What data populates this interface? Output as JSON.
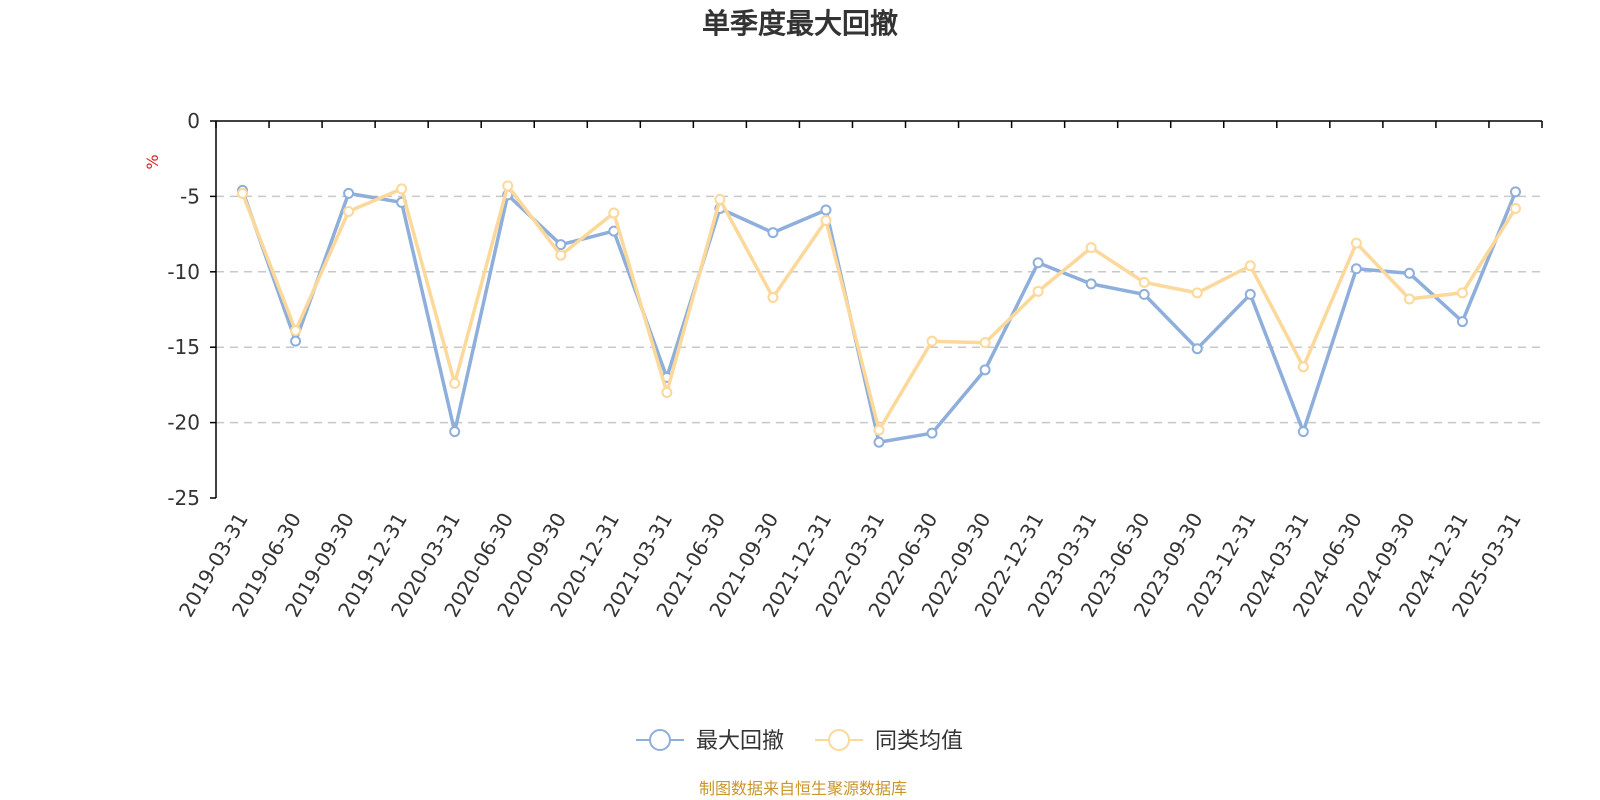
{
  "chart_data": {
    "type": "line",
    "title": "单季度最大回撤",
    "ylabel": "%",
    "ylim": [
      -25,
      0
    ],
    "yticks": [
      0,
      -5,
      -10,
      -15,
      -20,
      -25
    ],
    "grid": true,
    "legend_position": "bottom",
    "categories": [
      "2019-03-31",
      "2019-06-30",
      "2019-09-30",
      "2019-12-31",
      "2020-03-31",
      "2020-06-30",
      "2020-09-30",
      "2020-12-31",
      "2021-03-31",
      "2021-06-30",
      "2021-09-30",
      "2021-12-31",
      "2022-03-31",
      "2022-06-30",
      "2022-09-30",
      "2022-12-31",
      "2023-03-31",
      "2023-06-30",
      "2023-09-30",
      "2023-12-31",
      "2024-03-31",
      "2024-06-30",
      "2024-09-30",
      "2024-12-31",
      "2025-03-31"
    ],
    "series": [
      {
        "name": "最大回撤",
        "color": "#8eaedb",
        "values": [
          -4.6,
          -14.6,
          -4.8,
          -5.4,
          -20.6,
          -4.9,
          -8.2,
          -7.3,
          -17.0,
          -5.8,
          -7.4,
          -5.9,
          -21.3,
          -20.7,
          -16.5,
          -9.4,
          -10.8,
          -11.5,
          -15.1,
          -11.5,
          -20.6,
          -9.8,
          -10.1,
          -13.3,
          -4.7
        ]
      },
      {
        "name": "同类均值",
        "color": "#fcd89a",
        "values": [
          -4.8,
          -13.9,
          -6.0,
          -4.5,
          -17.4,
          -4.3,
          -8.9,
          -6.1,
          -18.0,
          -5.2,
          -11.7,
          -6.6,
          -20.5,
          -14.6,
          -14.7,
          -11.3,
          -8.4,
          -10.7,
          -11.4,
          -9.6,
          -16.3,
          -8.1,
          -11.8,
          -11.4,
          -5.8
        ]
      }
    ],
    "source_note": "制图数据来自恒生聚源数据库"
  }
}
